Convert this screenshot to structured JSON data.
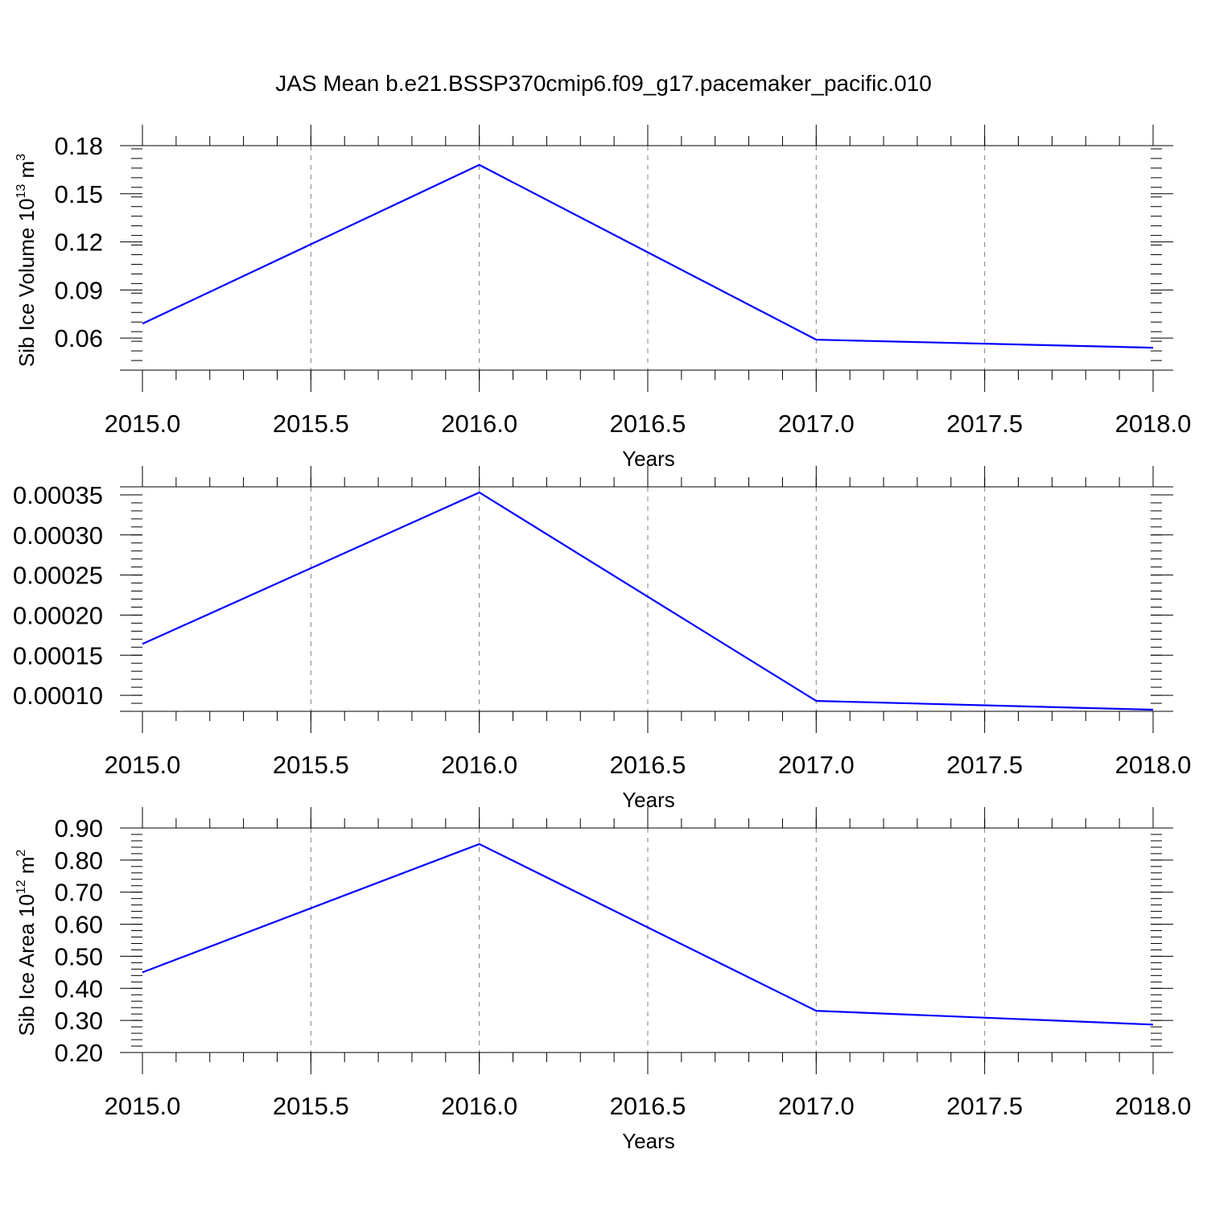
{
  "title": "JAS Mean b.e21.BSSP370cmip6.f09_g17.pacemaker_pacific.010",
  "colors": {
    "line": "#0000ff",
    "axis": "#000000",
    "grid": "#808080"
  },
  "chart_data": [
    {
      "type": "line",
      "x": [
        2015.0,
        2016.0,
        2017.0,
        2018.0
      ],
      "series": [
        {
          "values": [
            0.069,
            0.168,
            0.059,
            0.054
          ]
        }
      ],
      "xlabel": "Years",
      "ylabel_main": "Sib Ice Volume 10",
      "ylabel_exp": "13",
      "ylabel_unit": " m",
      "ylabel_unit_exp": "3",
      "xlim": [
        2015.0,
        2018.0
      ],
      "ylim": [
        0.04,
        0.18
      ],
      "xticks": [
        "2015.0",
        "2015.5",
        "2016.0",
        "2016.5",
        "2017.0",
        "2017.5",
        "2018.0"
      ],
      "yticks": [
        "0.06",
        "0.09",
        "0.12",
        "0.15",
        "0.18"
      ],
      "grid": "vertical-dashed"
    },
    {
      "type": "line",
      "x": [
        2015.0,
        2016.0,
        2017.0,
        2018.0
      ],
      "series": [
        {
          "values": [
            0.000164,
            0.000353,
            9.3e-05,
            8.2e-05
          ]
        }
      ],
      "xlabel": "Years",
      "ylabel_main": "",
      "xlim": [
        2015.0,
        2018.0
      ],
      "ylim": [
        8e-05,
        0.00036
      ],
      "xticks": [
        "2015.0",
        "2015.5",
        "2016.0",
        "2016.5",
        "2017.0",
        "2017.5",
        "2018.0"
      ],
      "yticks": [
        "0.00010",
        "0.00015",
        "0.00020",
        "0.00025",
        "0.00030",
        "0.00035"
      ],
      "grid": "vertical-dashed"
    },
    {
      "type": "line",
      "x": [
        2015.0,
        2016.0,
        2017.0,
        2018.0
      ],
      "series": [
        {
          "values": [
            0.45,
            0.85,
            0.33,
            0.287
          ]
        }
      ],
      "xlabel": "Years",
      "ylabel_main": "Sib Ice Area 10",
      "ylabel_exp": "12",
      "ylabel_unit": " m",
      "ylabel_unit_exp": "2",
      "xlim": [
        2015.0,
        2018.0
      ],
      "ylim": [
        0.2,
        0.9
      ],
      "xticks": [
        "2015.0",
        "2015.5",
        "2016.0",
        "2016.5",
        "2017.0",
        "2017.5",
        "2018.0"
      ],
      "yticks": [
        "0.20",
        "0.30",
        "0.40",
        "0.50",
        "0.60",
        "0.70",
        "0.80",
        "0.90"
      ],
      "grid": "vertical-dashed"
    }
  ]
}
